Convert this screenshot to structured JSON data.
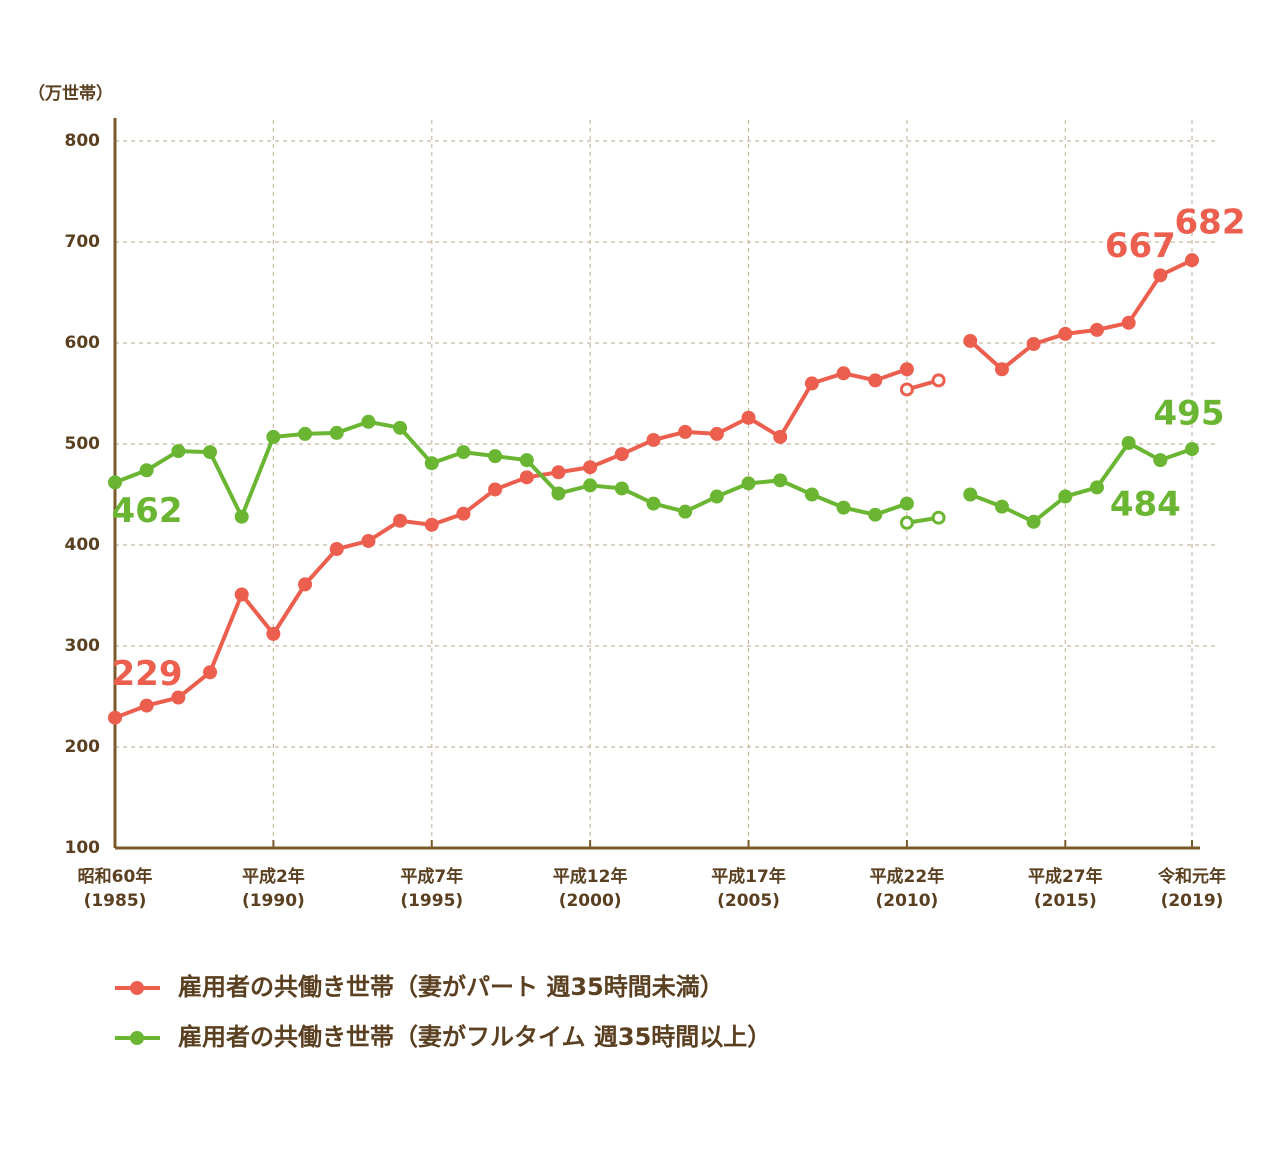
{
  "chart_data": {
    "type": "line",
    "y_label": "（万世帯）",
    "x": [
      1985,
      1986,
      1987,
      1988,
      1989,
      1990,
      1991,
      1992,
      1993,
      1994,
      1995,
      1996,
      1997,
      1998,
      1999,
      2000,
      2001,
      2002,
      2003,
      2004,
      2005,
      2006,
      2007,
      2008,
      2009,
      2010,
      2011,
      2012,
      2013,
      2014,
      2015,
      2016,
      2017,
      2018,
      2019
    ],
    "series": [
      {
        "name": "雇用者の共働き世帯（妻がパート 週35時間未満）",
        "color": "#ec5f4f",
        "values": [
          229,
          241,
          249,
          274,
          351,
          312,
          361,
          396,
          404,
          424,
          420,
          431,
          455,
          467,
          472,
          477,
          490,
          504,
          512,
          510,
          526,
          507,
          560,
          570,
          563,
          574,
          null,
          602,
          574,
          599,
          609,
          613,
          620,
          667,
          682
        ],
        "labeled": [
          0,
          33,
          34
        ]
      },
      {
        "name": "雇用者の共働き世帯（妻がフルタイム 週35時間以上）",
        "color": "#6ab633",
        "values": [
          462,
          474,
          493,
          492,
          428,
          507,
          510,
          511,
          522,
          516,
          481,
          492,
          488,
          484,
          451,
          459,
          456,
          441,
          433,
          448,
          461,
          464,
          450,
          437,
          430,
          441,
          null,
          450,
          438,
          423,
          448,
          457,
          501,
          484,
          495
        ],
        "labeled": [
          0,
          33,
          34
        ]
      },
      {
        "color": "#ec5f4f",
        "marker": "hollow",
        "values": [
          null,
          null,
          null,
          null,
          null,
          null,
          null,
          null,
          null,
          null,
          null,
          null,
          null,
          null,
          null,
          null,
          null,
          null,
          null,
          null,
          null,
          null,
          null,
          null,
          null,
          554,
          563,
          null,
          null,
          null,
          null,
          null,
          null,
          null,
          null
        ]
      },
      {
        "color": "#6ab633",
        "marker": "hollow",
        "values": [
          null,
          null,
          null,
          null,
          null,
          null,
          null,
          null,
          null,
          null,
          null,
          null,
          null,
          null,
          null,
          null,
          null,
          null,
          null,
          null,
          null,
          null,
          null,
          null,
          null,
          422,
          427,
          null,
          null,
          null,
          null,
          null,
          null,
          null,
          null
        ]
      }
    ],
    "xlim": [
      1985,
      2019
    ],
    "xticks": [
      {
        "value": 1985,
        "label": [
          "昭和60年",
          "(1985)"
        ]
      },
      {
        "value": 1990,
        "label": [
          "平成2年",
          "(1990)"
        ]
      },
      {
        "value": 1995,
        "label": [
          "平成7年",
          "(1995)"
        ]
      },
      {
        "value": 2000,
        "label": [
          "平成12年",
          "(2000)"
        ]
      },
      {
        "value": 2005,
        "label": [
          "平成17年",
          "(2005)"
        ]
      },
      {
        "value": 2010,
        "label": [
          "平成22年",
          "(2010)"
        ]
      },
      {
        "value": 2015,
        "label": [
          "平成27年",
          "(2015)"
        ]
      },
      {
        "value": 2019,
        "label": [
          "令和元年",
          "(2019)"
        ]
      }
    ],
    "ylim": [
      100,
      800
    ],
    "yticks": [
      100,
      200,
      300,
      400,
      500,
      600,
      700,
      800
    ],
    "grid": true,
    "legend": "bottom"
  }
}
